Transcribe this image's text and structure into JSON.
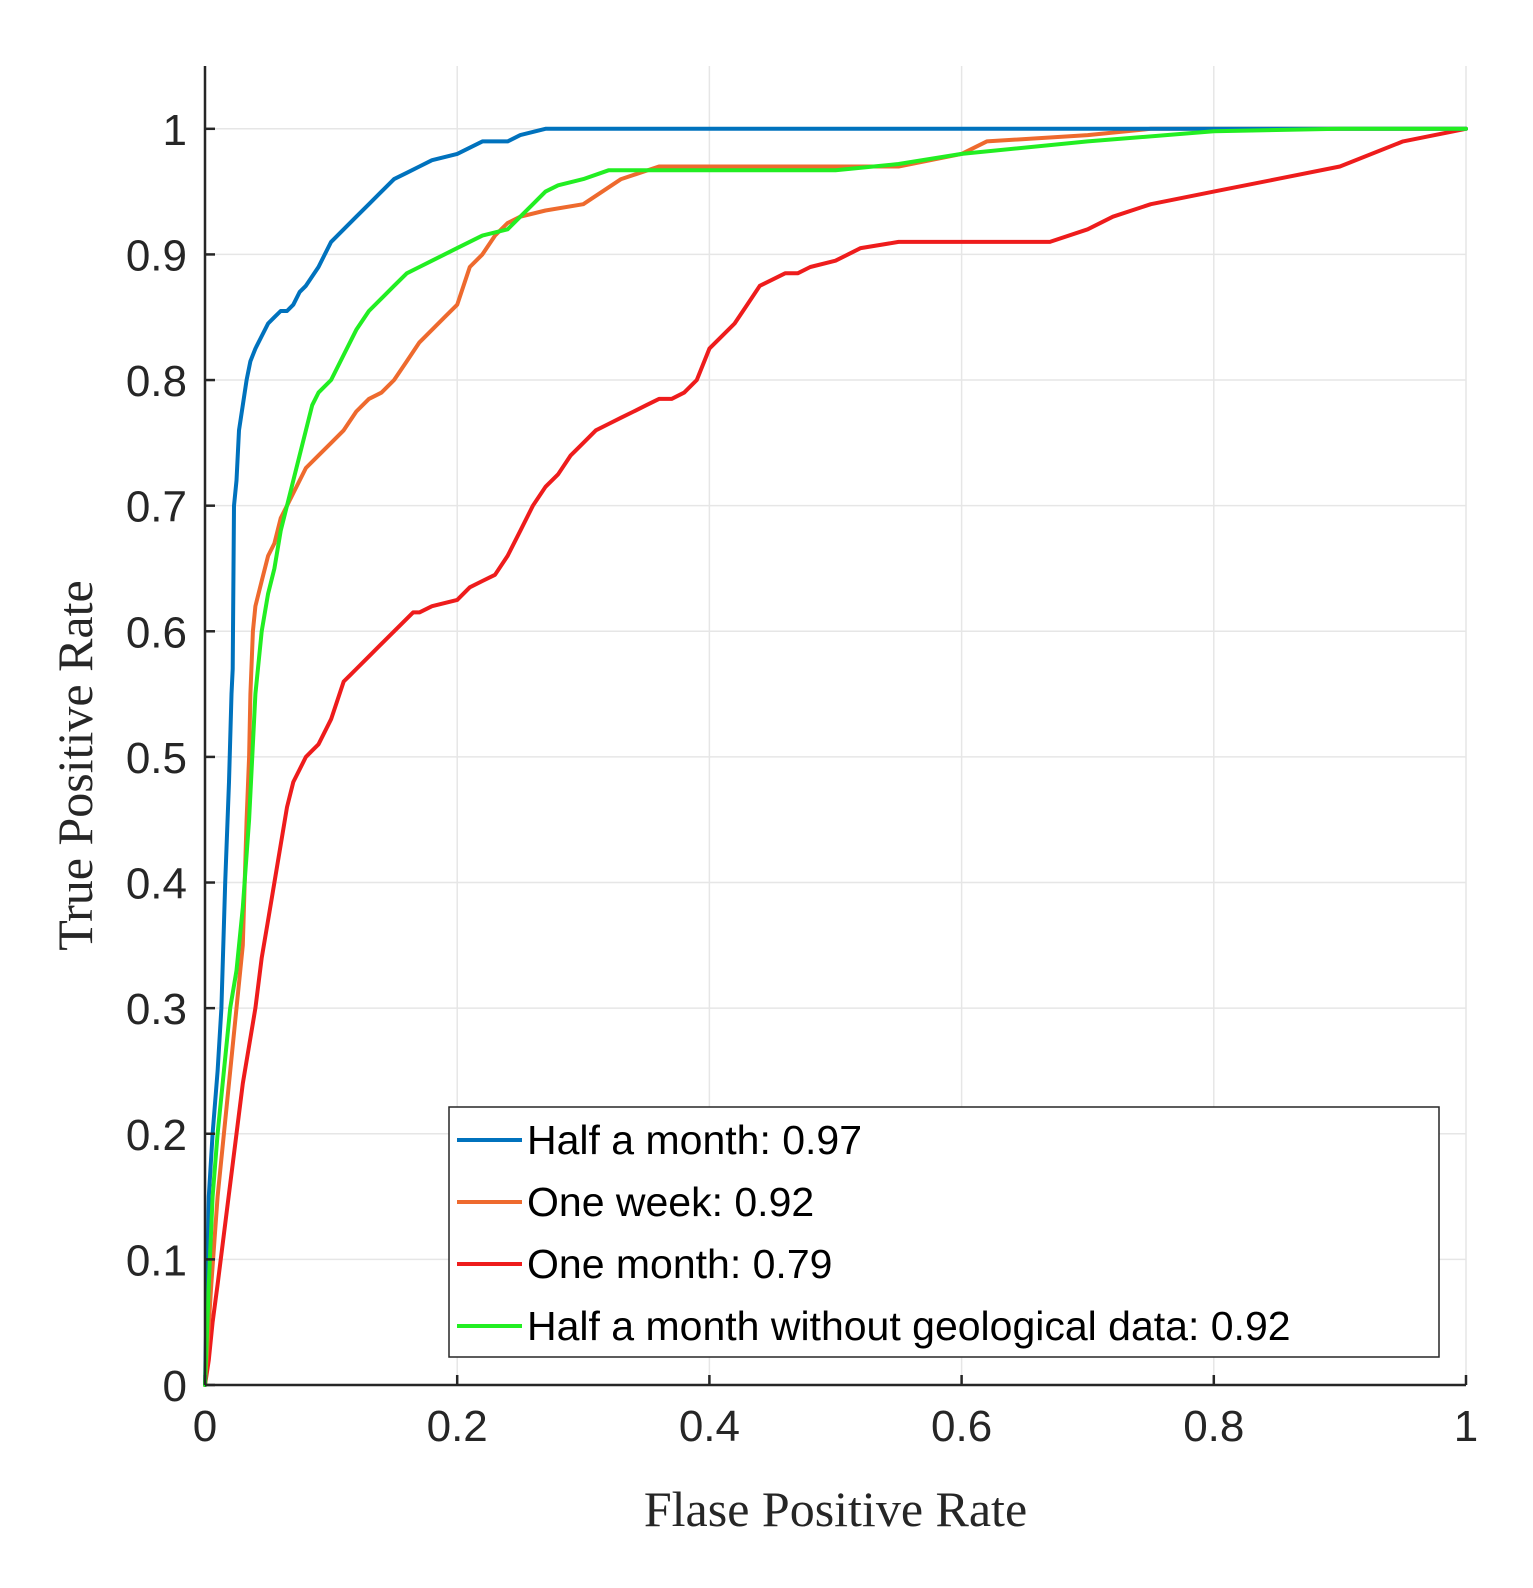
{
  "chart_data": {
    "type": "line",
    "title": "",
    "xlabel": "Flase Positive Rate",
    "ylabel": "True Positive Rate",
    "xlim": [
      0,
      1
    ],
    "ylim": [
      0,
      1.05
    ],
    "grid": true,
    "legend_position": "bottom-right",
    "xticks": [
      0,
      0.2,
      0.4,
      0.6,
      0.8,
      1
    ],
    "xtick_labels": [
      "0",
      "0.2",
      "0.4",
      "0.6",
      "0.8",
      "1"
    ],
    "yticks": [
      0,
      0.1,
      0.2,
      0.3,
      0.4,
      0.5,
      0.6,
      0.7,
      0.8,
      0.9,
      1
    ],
    "ytick_labels": [
      "0",
      "0.1",
      "0.2",
      "0.3",
      "0.4",
      "0.5",
      "0.6",
      "0.7",
      "0.8",
      "0.9",
      "1"
    ],
    "series": [
      {
        "name": "Half a month: 0.97",
        "color": "#0072BD",
        "x": [
          0,
          0.003,
          0.006,
          0.01,
          0.013,
          0.016,
          0.019,
          0.021,
          0.022,
          0.023,
          0.025,
          0.027,
          0.03,
          0.033,
          0.036,
          0.04,
          0.045,
          0.05,
          0.055,
          0.06,
          0.065,
          0.07,
          0.075,
          0.08,
          0.09,
          0.095,
          0.1,
          0.11,
          0.12,
          0.13,
          0.14,
          0.15,
          0.16,
          0.17,
          0.18,
          0.2,
          0.22,
          0.24,
          0.25,
          0.27,
          0.3,
          0.4,
          0.5,
          0.6,
          0.7,
          0.8,
          0.9,
          1
        ],
        "y": [
          0,
          0.15,
          0.2,
          0.25,
          0.3,
          0.4,
          0.48,
          0.55,
          0.57,
          0.7,
          0.72,
          0.76,
          0.78,
          0.8,
          0.815,
          0.825,
          0.835,
          0.845,
          0.85,
          0.855,
          0.855,
          0.86,
          0.87,
          0.875,
          0.89,
          0.9,
          0.91,
          0.92,
          0.93,
          0.94,
          0.95,
          0.96,
          0.965,
          0.97,
          0.975,
          0.98,
          0.99,
          0.99,
          0.995,
          1.0,
          1.0,
          1.0,
          1.0,
          1.0,
          1.0,
          1.0,
          1.0,
          1.0
        ]
      },
      {
        "name": "One week: 0.92",
        "color": "#EE6A2E",
        "x": [
          0,
          0.005,
          0.01,
          0.015,
          0.02,
          0.025,
          0.03,
          0.033,
          0.035,
          0.036,
          0.038,
          0.04,
          0.045,
          0.05,
          0.055,
          0.06,
          0.065,
          0.07,
          0.08,
          0.09,
          0.1,
          0.11,
          0.12,
          0.13,
          0.14,
          0.15,
          0.16,
          0.17,
          0.18,
          0.19,
          0.2,
          0.21,
          0.22,
          0.23,
          0.24,
          0.25,
          0.27,
          0.3,
          0.33,
          0.36,
          0.4,
          0.45,
          0.5,
          0.55,
          0.6,
          0.62,
          0.7,
          0.75,
          0.8,
          0.9,
          1
        ],
        "y": [
          0,
          0.08,
          0.15,
          0.2,
          0.25,
          0.3,
          0.35,
          0.45,
          0.5,
          0.55,
          0.6,
          0.62,
          0.64,
          0.66,
          0.67,
          0.69,
          0.7,
          0.71,
          0.73,
          0.74,
          0.75,
          0.76,
          0.775,
          0.785,
          0.79,
          0.8,
          0.815,
          0.83,
          0.84,
          0.85,
          0.86,
          0.89,
          0.9,
          0.915,
          0.925,
          0.93,
          0.935,
          0.94,
          0.96,
          0.97,
          0.97,
          0.97,
          0.97,
          0.97,
          0.98,
          0.99,
          0.995,
          1.0,
          1.0,
          1.0,
          1.0
        ]
      },
      {
        "name": "One month: 0.79",
        "color": "#EE1C1C",
        "x": [
          0,
          0.003,
          0.006,
          0.01,
          0.015,
          0.02,
          0.025,
          0.03,
          0.035,
          0.04,
          0.045,
          0.05,
          0.055,
          0.06,
          0.065,
          0.07,
          0.075,
          0.08,
          0.085,
          0.09,
          0.1,
          0.105,
          0.11,
          0.115,
          0.12,
          0.13,
          0.14,
          0.15,
          0.16,
          0.165,
          0.17,
          0.18,
          0.2,
          0.21,
          0.22,
          0.23,
          0.24,
          0.25,
          0.26,
          0.27,
          0.28,
          0.29,
          0.3,
          0.31,
          0.32,
          0.33,
          0.34,
          0.35,
          0.36,
          0.37,
          0.38,
          0.39,
          0.4,
          0.41,
          0.42,
          0.43,
          0.44,
          0.45,
          0.46,
          0.47,
          0.48,
          0.5,
          0.52,
          0.55,
          0.6,
          0.65,
          0.67,
          0.7,
          0.72,
          0.75,
          0.8,
          0.85,
          0.9,
          0.95,
          1
        ],
        "y": [
          0,
          0.02,
          0.05,
          0.08,
          0.12,
          0.16,
          0.2,
          0.24,
          0.27,
          0.3,
          0.34,
          0.37,
          0.4,
          0.43,
          0.46,
          0.48,
          0.49,
          0.5,
          0.505,
          0.51,
          0.53,
          0.545,
          0.56,
          0.565,
          0.57,
          0.58,
          0.59,
          0.6,
          0.61,
          0.615,
          0.615,
          0.62,
          0.625,
          0.635,
          0.64,
          0.645,
          0.66,
          0.68,
          0.7,
          0.715,
          0.725,
          0.74,
          0.75,
          0.76,
          0.765,
          0.77,
          0.775,
          0.78,
          0.785,
          0.785,
          0.79,
          0.8,
          0.825,
          0.835,
          0.845,
          0.86,
          0.875,
          0.88,
          0.885,
          0.885,
          0.89,
          0.895,
          0.905,
          0.91,
          0.91,
          0.91,
          0.91,
          0.92,
          0.93,
          0.94,
          0.95,
          0.96,
          0.97,
          0.99,
          1.0
        ]
      },
      {
        "name": "Half a month without geological data: 0.92",
        "color": "#22EE22",
        "x": [
          0,
          0.003,
          0.006,
          0.01,
          0.015,
          0.02,
          0.025,
          0.03,
          0.035,
          0.04,
          0.045,
          0.05,
          0.055,
          0.06,
          0.065,
          0.07,
          0.075,
          0.08,
          0.085,
          0.09,
          0.1,
          0.11,
          0.12,
          0.13,
          0.14,
          0.15,
          0.16,
          0.17,
          0.18,
          0.2,
          0.22,
          0.24,
          0.25,
          0.26,
          0.27,
          0.28,
          0.3,
          0.32,
          0.35,
          0.4,
          0.45,
          0.5,
          0.55,
          0.6,
          0.7,
          0.8,
          0.9,
          1
        ],
        "y": [
          0,
          0.08,
          0.15,
          0.2,
          0.25,
          0.3,
          0.33,
          0.38,
          0.45,
          0.55,
          0.6,
          0.63,
          0.65,
          0.68,
          0.7,
          0.72,
          0.74,
          0.76,
          0.78,
          0.79,
          0.8,
          0.82,
          0.84,
          0.855,
          0.865,
          0.875,
          0.885,
          0.89,
          0.895,
          0.905,
          0.915,
          0.92,
          0.93,
          0.94,
          0.95,
          0.955,
          0.96,
          0.967,
          0.967,
          0.967,
          0.967,
          0.967,
          0.972,
          0.98,
          0.99,
          0.998,
          1.0,
          1.0
        ]
      }
    ]
  }
}
